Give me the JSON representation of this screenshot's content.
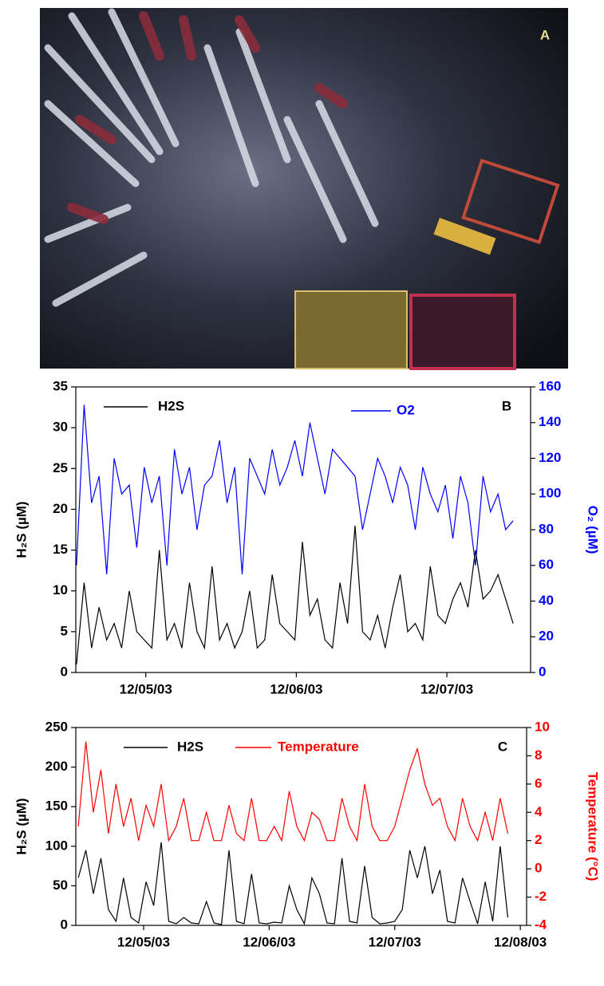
{
  "photo": {
    "label": "A"
  },
  "chart_data": [
    {
      "type": "line",
      "label": "B",
      "ylabel": "H₂S (µM)",
      "y2label": "O₂ (µM)",
      "xlim": [
        4.535,
        7.556
      ],
      "xticks": [
        {
          "value": 5,
          "label": "12/05/03"
        },
        {
          "value": 6,
          "label": "12/06/03"
        },
        {
          "value": 7,
          "label": "12/07/03"
        }
      ],
      "ylim": [
        0,
        35
      ],
      "yticks": [
        0,
        5,
        10,
        15,
        20,
        25,
        30,
        35
      ],
      "y2lim": [
        0,
        160
      ],
      "y2ticks": [
        0,
        20,
        40,
        60,
        80,
        100,
        120,
        140,
        160
      ],
      "x": [
        4.54,
        4.59,
        4.64,
        4.69,
        4.74,
        4.79,
        4.84,
        4.89,
        4.94,
        4.99,
        5.04,
        5.09,
        5.14,
        5.19,
        5.24,
        5.29,
        5.34,
        5.39,
        5.44,
        5.49,
        5.54,
        5.59,
        5.64,
        5.69,
        5.74,
        5.79,
        5.84,
        5.89,
        5.94,
        5.99,
        6.04,
        6.09,
        6.14,
        6.19,
        6.24,
        6.29,
        6.34,
        6.39,
        6.44,
        6.49,
        6.54,
        6.59,
        6.64,
        6.69,
        6.74,
        6.79,
        6.84,
        6.89,
        6.94,
        6.99,
        7.04,
        7.09,
        7.14,
        7.19,
        7.24,
        7.29,
        7.34,
        7.39,
        7.44
      ],
      "series": [
        {
          "name": "H2S",
          "color": "#000000",
          "axis": "y",
          "values": [
            1,
            11,
            3,
            8,
            4,
            6,
            3,
            10,
            5,
            4,
            3,
            15,
            4,
            6,
            3,
            11,
            5,
            3,
            13,
            4,
            6,
            3,
            5,
            10,
            3,
            4,
            12,
            6,
            5,
            4,
            16,
            7,
            9,
            4,
            3,
            11,
            6,
            18,
            5,
            4,
            7,
            3,
            8,
            12,
            5,
            6,
            4,
            13,
            7,
            6,
            9,
            11,
            8,
            15,
            9,
            10,
            12,
            9,
            6
          ]
        },
        {
          "name": "O2",
          "color": "#0000ff",
          "axis": "y2",
          "values": [
            60,
            150,
            95,
            110,
            55,
            120,
            100,
            105,
            70,
            115,
            95,
            110,
            60,
            125,
            100,
            115,
            80,
            105,
            110,
            130,
            95,
            115,
            55,
            120,
            110,
            100,
            125,
            105,
            115,
            130,
            110,
            140,
            120,
            100,
            125,
            120,
            115,
            110,
            80,
            100,
            120,
            110,
            95,
            115,
            105,
            80,
            115,
            100,
            90,
            105,
            75,
            110,
            95,
            60,
            110,
            90,
            100,
            80,
            85
          ]
        }
      ]
    },
    {
      "type": "line",
      "label": "C",
      "ylabel": "H₂S (µM)",
      "y2label": "Temperature (°C)",
      "xlim": [
        4.46,
        8.05
      ],
      "xticks": [
        {
          "value": 5,
          "label": "12/05/03"
        },
        {
          "value": 6,
          "label": "12/06/03"
        },
        {
          "value": 7,
          "label": "12/07/03"
        },
        {
          "value": 8,
          "label": "12/08/03"
        }
      ],
      "ylim": [
        0,
        250
      ],
      "yticks": [
        0,
        50,
        100,
        150,
        200,
        250
      ],
      "y2lim": [
        -4,
        10
      ],
      "y2ticks": [
        -4,
        -2,
        0,
        2,
        4,
        6,
        8,
        10
      ],
      "x": [
        4.48,
        4.54,
        4.6,
        4.66,
        4.72,
        4.78,
        4.84,
        4.9,
        4.96,
        5.02,
        5.08,
        5.14,
        5.2,
        5.26,
        5.32,
        5.38,
        5.44,
        5.5,
        5.56,
        5.62,
        5.68,
        5.74,
        5.8,
        5.86,
        5.92,
        5.98,
        6.04,
        6.1,
        6.16,
        6.22,
        6.28,
        6.34,
        6.4,
        6.46,
        6.52,
        6.58,
        6.64,
        6.7,
        6.76,
        6.82,
        6.88,
        6.94,
        7.0,
        7.06,
        7.12,
        7.18,
        7.24,
        7.3,
        7.36,
        7.42,
        7.48,
        7.54,
        7.6,
        7.66,
        7.72,
        7.78,
        7.84,
        7.9
      ],
      "series": [
        {
          "name": "H2S",
          "color": "#000000",
          "axis": "y",
          "values": [
            60,
            95,
            40,
            85,
            20,
            5,
            60,
            10,
            3,
            55,
            25,
            105,
            5,
            2,
            10,
            3,
            2,
            30,
            3,
            1,
            95,
            5,
            2,
            65,
            3,
            2,
            4,
            3,
            50,
            20,
            2,
            60,
            40,
            3,
            2,
            85,
            5,
            3,
            75,
            10,
            2,
            3,
            5,
            20,
            95,
            60,
            100,
            40,
            70,
            5,
            3,
            60,
            30,
            2,
            55,
            5,
            100,
            10
          ]
        },
        {
          "name": "Temperature",
          "color": "#ff0000",
          "axis": "y2",
          "values": [
            3,
            9,
            4,
            7,
            2.5,
            6,
            3,
            5,
            2,
            4.5,
            3,
            6,
            2,
            3,
            5,
            2,
            2,
            4,
            2,
            2,
            4.5,
            2.5,
            2,
            5,
            2,
            2,
            3,
            2,
            5.5,
            3,
            2,
            4,
            3.5,
            2,
            2,
            5,
            3,
            2,
            6,
            3,
            2,
            2,
            3,
            5,
            7,
            8.5,
            6,
            4.5,
            5,
            3,
            2,
            5,
            3,
            2,
            4,
            2,
            5,
            2.5
          ]
        }
      ]
    }
  ]
}
